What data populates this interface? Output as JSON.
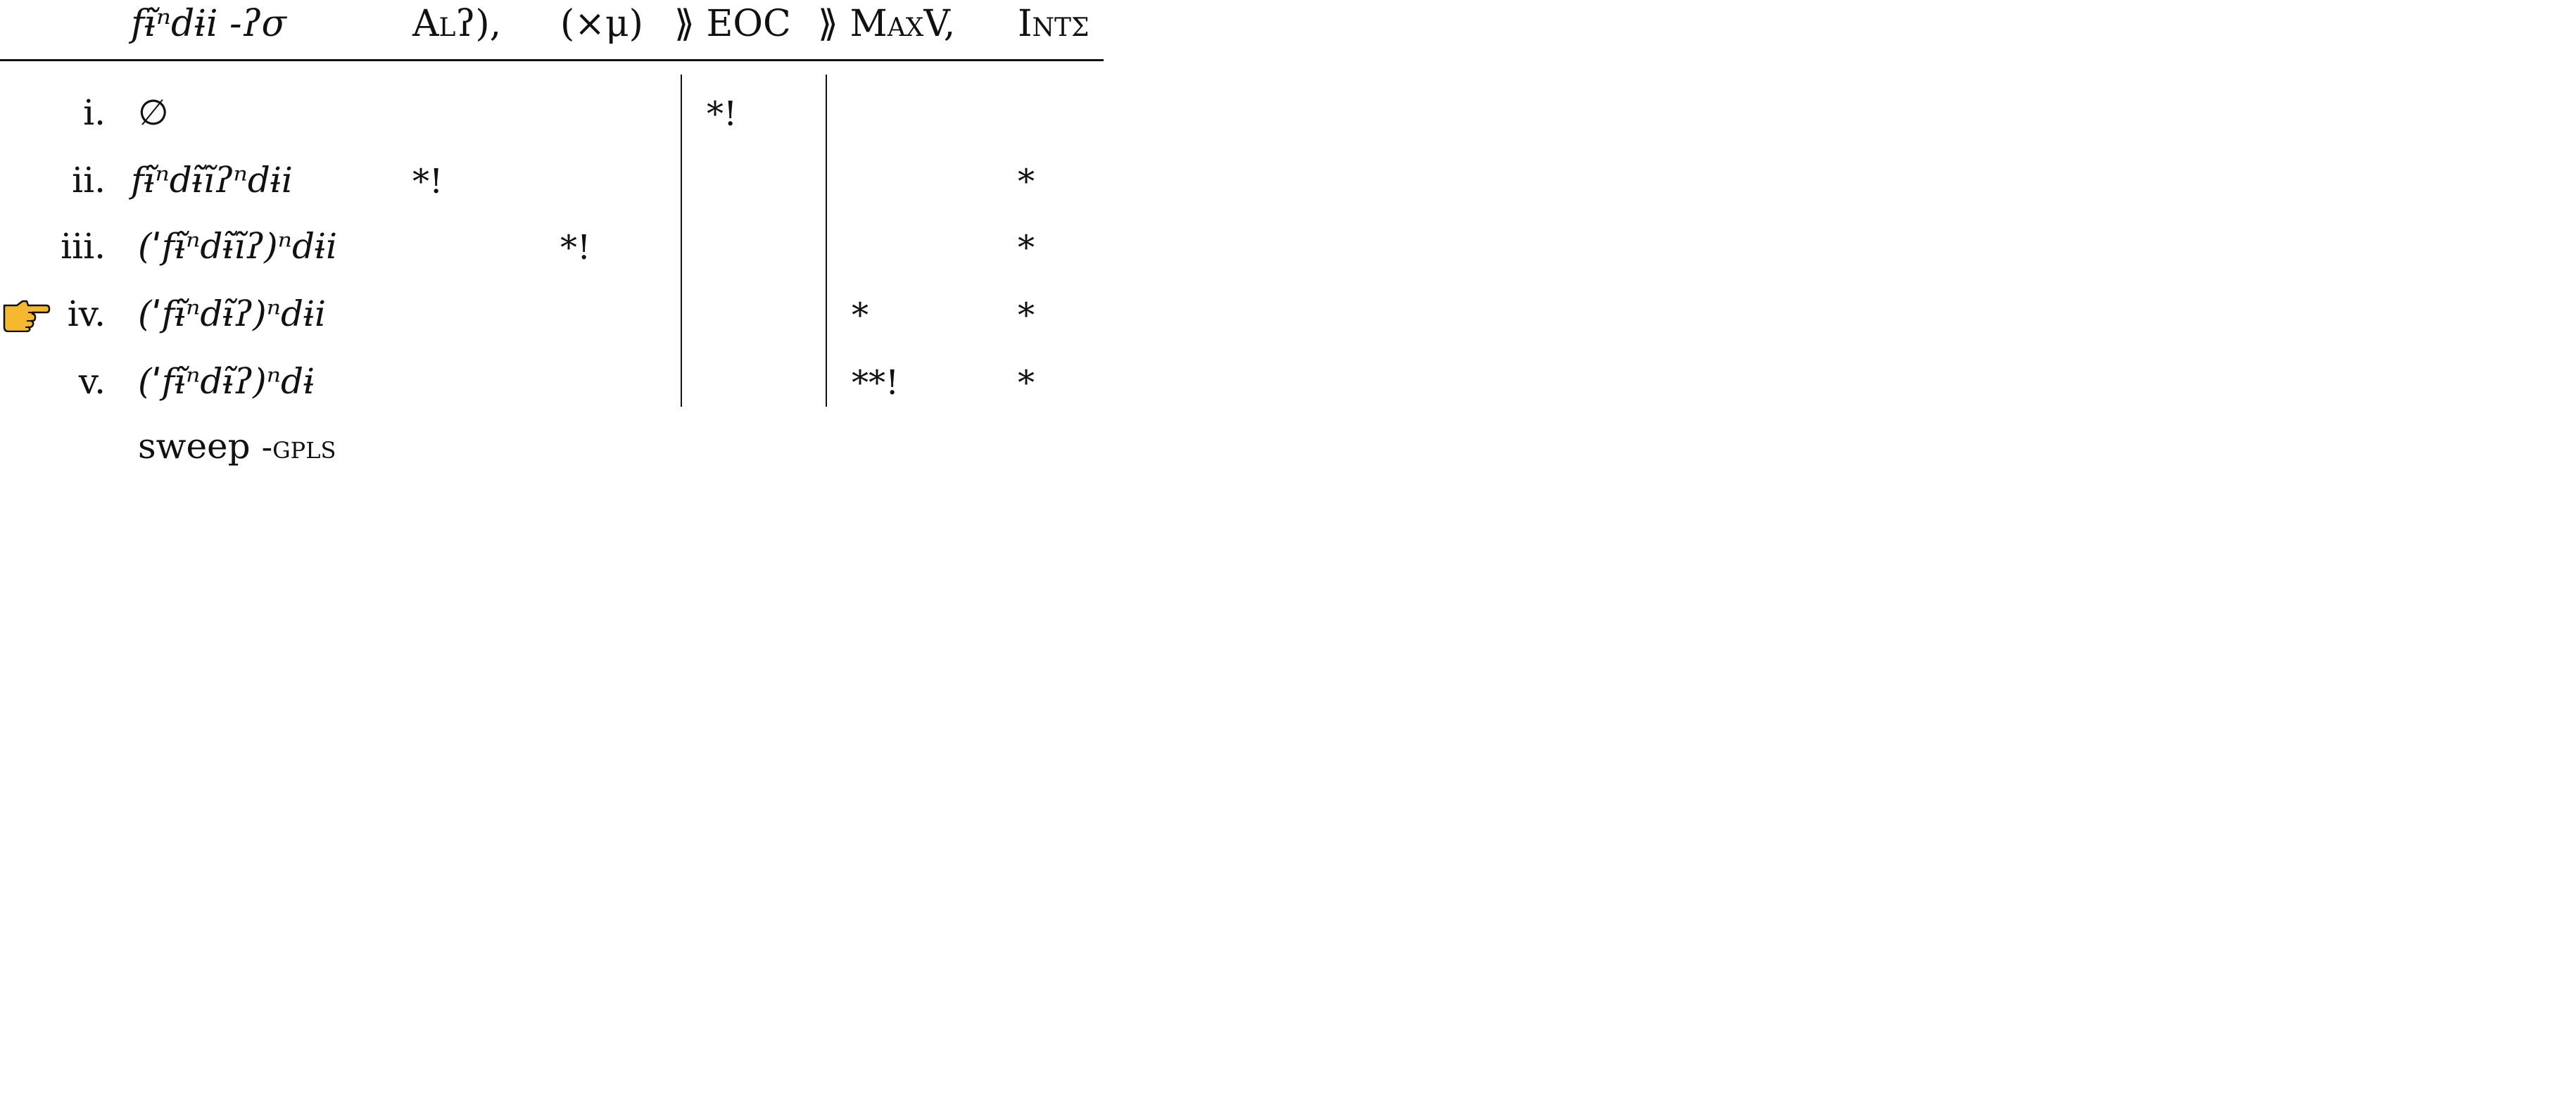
{
  "header": {
    "input": "fɨ̃ⁿdɨi -ʔσ",
    "constraints": [
      "Alʔ),",
      "(×μ)",
      "⟫ EOC",
      "⟫ MaxV,",
      "Intσ"
    ]
  },
  "rows": [
    {
      "num": "i.",
      "form": "∅",
      "marks": [
        "",
        "",
        "*!",
        "",
        ""
      ],
      "winner": false
    },
    {
      "num": "ii.",
      "form": "fɨ̃ⁿdɨ̃ĩʔⁿdɨi",
      "marks": [
        "*!",
        "",
        "",
        "",
        "*"
      ],
      "winner": false
    },
    {
      "num": "iii.",
      "form": "(ˈfɨ̃ⁿdɨ̃ĩʔ)ⁿdɨi",
      "marks": [
        "",
        "*!",
        "",
        "",
        "*"
      ],
      "winner": false
    },
    {
      "num": "iv.",
      "form": "(ˈfɨ̃ⁿdɨ̃ʔ)ⁿdɨi",
      "marks": [
        "",
        "",
        "",
        "*",
        "*"
      ],
      "winner": true
    },
    {
      "num": "v.",
      "form": "(ˈfɨ̃ⁿdɨ̃ʔ)ⁿdɨ",
      "marks": [
        "",
        "",
        "",
        "**!",
        "*"
      ],
      "winner": false
    }
  ],
  "caption": {
    "word": "sweep",
    "gloss": "-gpls"
  },
  "icons": {
    "winner_pointer": "pointing-hand-icon"
  },
  "colors": {
    "pointer_fill": "#F5B82E",
    "pointer_stroke": "#111111"
  }
}
